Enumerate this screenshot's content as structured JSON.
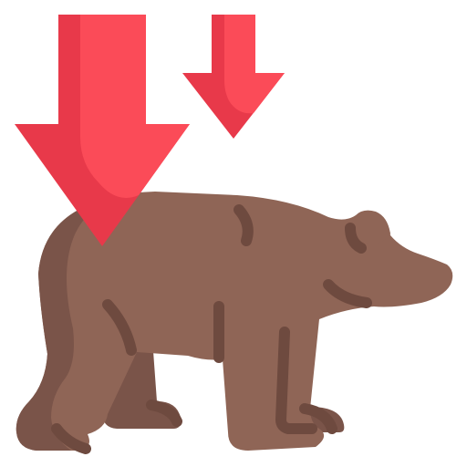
{
  "icon": {
    "name": "bear-market-icon",
    "colors": {
      "bear_body": "#8f6556",
      "bear_shade": "#7a5449",
      "bear_line": "#6e4a3f",
      "arrow_light": "#fb4b58",
      "arrow_dark": "#e8394a"
    }
  }
}
